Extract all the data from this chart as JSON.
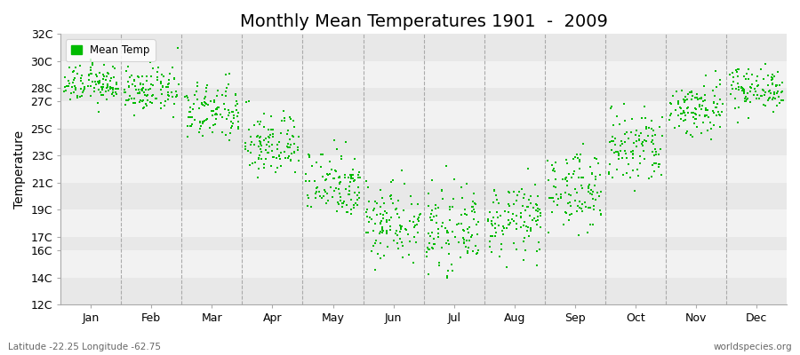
{
  "title": "Monthly Mean Temperatures 1901  -  2009",
  "ylabel": "Temperature",
  "xlabel_labels": [
    "Jan",
    "Feb",
    "Mar",
    "Apr",
    "May",
    "Jun",
    "Jul",
    "Aug",
    "Sep",
    "Oct",
    "Nov",
    "Dec"
  ],
  "ytick_labels": [
    "12C",
    "14C",
    "16C",
    "17C",
    "19C",
    "21C",
    "23C",
    "25C",
    "27C",
    "28C",
    "30C",
    "32C"
  ],
  "ytick_values": [
    12,
    14,
    16,
    17,
    19,
    21,
    23,
    25,
    27,
    28,
    30,
    32
  ],
  "ylim": [
    12,
    32
  ],
  "dot_color": "#00BB00",
  "background_color": "#F2F2F2",
  "band_colors": [
    "#E8E8E8",
    "#F2F2F2"
  ],
  "vline_color": "#AAAAAA",
  "title_fontsize": 14,
  "axis_fontsize": 10,
  "tick_fontsize": 9,
  "legend_label": "Mean Temp",
  "footer_left": "Latitude -22.25 Longitude -62.75",
  "footer_right": "worldspecies.org",
  "years": 109,
  "monthly_means": [
    28.3,
    27.8,
    26.2,
    23.8,
    21.0,
    18.2,
    17.5,
    18.2,
    20.5,
    23.5,
    26.5,
    28.0
  ],
  "monthly_stds": [
    0.7,
    0.8,
    1.1,
    1.2,
    1.3,
    1.5,
    1.4,
    1.3,
    1.4,
    1.5,
    1.1,
    0.8
  ]
}
